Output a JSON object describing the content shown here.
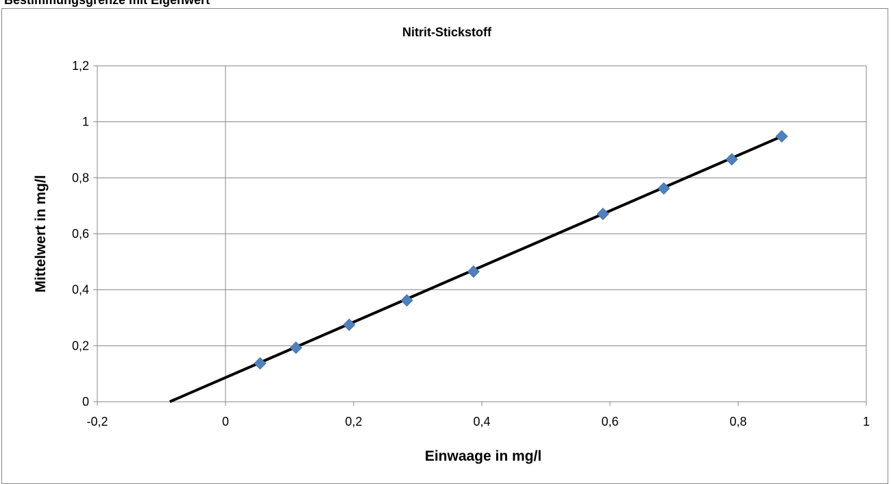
{
  "page_heading": "Bestimmungsgrenze mit Eigenwert",
  "chart_data": {
    "type": "scatter",
    "title": "Nitrit-Stickstoff",
    "xlabel": "Einwaage in mg/l",
    "ylabel": "Mittelwert in mg/l",
    "xlim": [
      -0.2,
      1
    ],
    "ylim": [
      0,
      1.2
    ],
    "x_ticks": [
      -0.2,
      0,
      0.2,
      0.4,
      0.6,
      0.8,
      1
    ],
    "y_ticks": [
      0,
      0.2,
      0.4,
      0.6,
      0.8,
      1,
      1.2
    ],
    "x_tick_labels": [
      "-0,2",
      "0",
      "0,2",
      "0,4",
      "0,6",
      "0,8",
      "1"
    ],
    "y_tick_labels": [
      "0",
      "0,2",
      "0,4",
      "0,6",
      "0,8",
      "1",
      "1,2"
    ],
    "grid": true,
    "legend": "none",
    "series": [
      {
        "marker": "diamond",
        "color": "#4F81BD",
        "x": [
          0.054,
          0.11,
          0.193,
          0.283,
          0.387,
          0.589,
          0.684,
          0.79,
          0.868
        ],
        "y": [
          0.137,
          0.193,
          0.275,
          0.362,
          0.465,
          0.671,
          0.762,
          0.866,
          0.948
        ]
      }
    ],
    "trendline": {
      "type": "linear",
      "color": "#000000",
      "from": [
        -0.087,
        0
      ],
      "to": [
        0.868,
        0.948
      ]
    }
  }
}
